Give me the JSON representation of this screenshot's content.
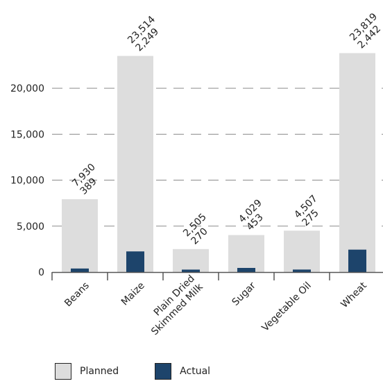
{
  "chart_data": {
    "type": "bar",
    "categories": [
      "Beans",
      "Maize",
      "Plain Dried Skimmed Milk",
      "Sugar",
      "Vegetable Oil",
      "Wheat"
    ],
    "category_lines": [
      [
        "Beans"
      ],
      [
        "Maize"
      ],
      [
        "Plain Dried",
        "Skimmed Milk"
      ],
      [
        "Sugar"
      ],
      [
        "Vegetable Oil"
      ],
      [
        "Wheat"
      ]
    ],
    "series": [
      {
        "name": "Planned",
        "values": [
          7930,
          23514,
          2505,
          4029,
          4507,
          23819
        ],
        "color": "#dddddd"
      },
      {
        "name": "Actual",
        "values": [
          389,
          2249,
          270,
          453,
          275,
          2442
        ],
        "color": "#1d446b"
      }
    ],
    "labels": [
      [
        "7,930",
        "389"
      ],
      [
        "23,514",
        "2,249"
      ],
      [
        "2,505",
        "270"
      ],
      [
        "4,029",
        "453"
      ],
      [
        "4,507",
        "275"
      ],
      [
        "23,819",
        "2,442"
      ]
    ],
    "yticks": [
      "0",
      "5,000",
      "10,000",
      "15,000",
      "20,000"
    ],
    "ytick_values": [
      0,
      5000,
      10000,
      15000,
      20000
    ],
    "ylim": [
      0,
      26500
    ],
    "grid": "dashed horizontal",
    "legend_position": "bottom-left"
  }
}
